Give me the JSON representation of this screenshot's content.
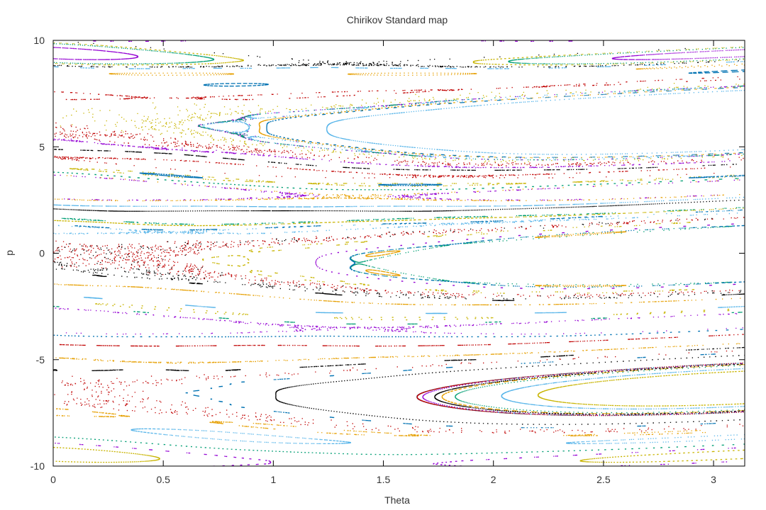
{
  "chart_data": {
    "type": "scatter",
    "title": "Chirikov Standard map",
    "xlabel": "Theta",
    "ylabel": "p",
    "xlim": [
      0,
      3.14159
    ],
    "ylim": [
      -10,
      10
    ],
    "x_ticks": [
      {
        "value": 0,
        "label": "0"
      },
      {
        "value": 0.5,
        "label": "0.5"
      },
      {
        "value": 1,
        "label": "1"
      },
      {
        "value": 1.5,
        "label": "1.5"
      },
      {
        "value": 2,
        "label": "2"
      },
      {
        "value": 2.5,
        "label": "2.5"
      },
      {
        "value": 3,
        "label": "3"
      }
    ],
    "y_ticks": [
      {
        "value": -10,
        "label": "-10"
      },
      {
        "value": -5,
        "label": "-5"
      },
      {
        "value": 0,
        "label": "0"
      },
      {
        "value": 5,
        "label": "5"
      },
      {
        "value": 10,
        "label": "10"
      }
    ],
    "grid": false,
    "legend": "none",
    "map": {
      "K": 0.9,
      "period": 6.28318
    },
    "palette": [
      "#9400d3",
      "#009e73",
      "#56b4e9",
      "#e69f00",
      "#c8b400",
      "#0072b2",
      "#c00000",
      "#000000"
    ],
    "series": [
      {
        "color": "#9400d3",
        "p0": [
          9.2,
          6.0,
          2.9,
          -0.8,
          -3.6,
          -7.2,
          -9.6,
          4.1
        ]
      },
      {
        "color": "#009e73",
        "p0": [
          9.5,
          6.2,
          3.1,
          -0.2,
          -3.3,
          -6.3,
          -9.3,
          1.9
        ]
      },
      {
        "color": "#56b4e9",
        "p0": [
          8.7,
          6.1,
          2.2,
          1.2,
          -2.8,
          -6.6,
          -8.9,
          4.7
        ]
      },
      {
        "color": "#e69f00",
        "p0": [
          8.4,
          5.5,
          2.6,
          0.1,
          -2.4,
          -5.9,
          -8.5,
          -4.4
        ]
      },
      {
        "color": "#c8b400",
        "p0": [
          9.0,
          7.2,
          3.3,
          1.6,
          -3.0,
          -6.9,
          -9.8,
          -1.7
        ]
      },
      {
        "color": "#0072b2",
        "p0": [
          7.9,
          5.2,
          1.4,
          -1.3,
          -3.9,
          -5.6,
          -8.1,
          3.6
        ]
      },
      {
        "color": "#c00000",
        "p0": [
          7.5,
          4.5,
          1.0,
          -1.9,
          -4.2,
          -7.6,
          -8.3,
          3.8
        ]
      },
      {
        "color": "#000000",
        "p0": [
          8.9,
          4.0,
          2.0,
          -2.2,
          -4.8,
          -5.5,
          -7.9,
          1.7
        ]
      }
    ]
  }
}
